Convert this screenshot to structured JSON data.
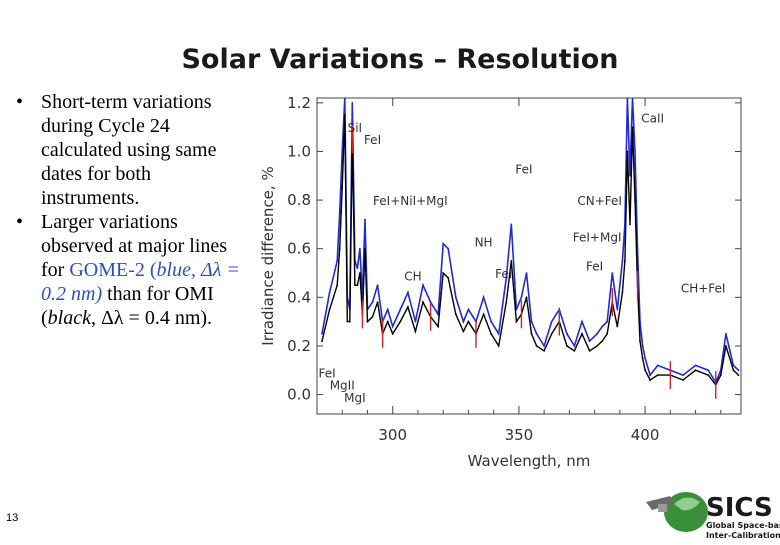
{
  "slide": {
    "title": "Solar Variations – Resolution",
    "page_number": "13",
    "bullet1": "Short-term variations during Cycle 24 calculated using same dates for both instruments.",
    "bullet2": {
      "part1": "Larger variations observed at major lines for ",
      "part2": "GOME-2",
      "part3": " (",
      "part4": "blue, Δλ = 0.2 nm)",
      "part5": " than for OMI (",
      "part6": "black",
      "part7": ", Δλ = 0.4 nm)."
    }
  },
  "logo": {
    "big_text": "SICS",
    "line1": "Global Space-based",
    "line2": "Inter-Calibration System",
    "colors": {
      "green": "#2e8b2e",
      "dark": "#1a1a1a"
    }
  },
  "colors": {
    "gome2_series": "#1f2bd8",
    "omi_series": "#000000",
    "error_bars": "#d42020",
    "axis": "#444444"
  },
  "chart_data": {
    "type": "line",
    "xlabel": "Wavelength, nm",
    "ylabel": "Irradiance difference, %",
    "xlim": [
      270,
      438
    ],
    "ylim": [
      -0.08,
      1.22
    ],
    "x_ticks": [
      300,
      350,
      400
    ],
    "y_ticks": [
      0.0,
      0.2,
      0.4,
      0.6,
      0.8,
      1.0,
      1.2
    ],
    "x_tick_labels": [
      "300",
      "350",
      "400"
    ],
    "y_tick_labels": [
      "0.0",
      "0.2",
      "0.4",
      "0.6",
      "0.8",
      "1.0",
      "1.2"
    ],
    "series": [
      {
        "name": "GOME-2",
        "color": "#1f2bd8",
        "x": [
          272,
          275,
          278,
          279,
          280,
          281,
          282,
          283,
          284,
          285,
          286,
          287,
          288,
          289,
          290,
          292,
          294,
          296,
          298,
          300,
          303,
          306,
          309,
          312,
          315,
          318,
          320,
          322,
          325,
          328,
          330,
          333,
          336,
          339,
          342,
          345,
          347,
          349,
          351,
          353,
          355,
          357,
          360,
          363,
          366,
          369,
          372,
          375,
          378,
          381,
          383,
          385,
          387,
          389,
          391,
          392,
          393,
          394,
          395,
          396,
          397,
          398,
          399,
          400,
          402,
          405,
          410,
          415,
          420,
          425,
          428,
          430,
          432,
          435,
          437
        ],
        "y": [
          0.25,
          0.42,
          0.55,
          0.75,
          1.0,
          1.22,
          0.4,
          0.35,
          1.2,
          0.55,
          0.52,
          0.6,
          0.4,
          0.72,
          0.35,
          0.38,
          0.45,
          0.3,
          0.35,
          0.28,
          0.35,
          0.42,
          0.3,
          0.45,
          0.38,
          0.33,
          0.62,
          0.6,
          0.4,
          0.3,
          0.35,
          0.3,
          0.4,
          0.3,
          0.25,
          0.48,
          0.7,
          0.35,
          0.4,
          0.5,
          0.3,
          0.25,
          0.2,
          0.3,
          0.35,
          0.25,
          0.2,
          0.3,
          0.22,
          0.25,
          0.28,
          0.3,
          0.5,
          0.35,
          0.55,
          0.7,
          1.22,
          0.9,
          1.22,
          1.0,
          0.6,
          0.3,
          0.2,
          0.15,
          0.08,
          0.12,
          0.1,
          0.08,
          0.12,
          0.1,
          0.05,
          0.1,
          0.25,
          0.12,
          0.1
        ]
      },
      {
        "name": "OMI",
        "color": "#000000",
        "x": [
          272,
          275,
          278,
          279,
          280,
          281,
          282,
          283,
          284,
          285,
          286,
          287,
          288,
          289,
          290,
          292,
          294,
          296,
          298,
          300,
          303,
          306,
          309,
          312,
          315,
          318,
          320,
          322,
          325,
          328,
          330,
          333,
          336,
          339,
          342,
          345,
          347,
          349,
          351,
          353,
          355,
          357,
          360,
          363,
          366,
          369,
          372,
          375,
          378,
          381,
          383,
          385,
          387,
          389,
          391,
          392,
          393,
          394,
          395,
          396,
          397,
          398,
          399,
          400,
          402,
          405,
          410,
          415,
          420,
          425,
          428,
          430,
          432,
          435,
          437
        ],
        "y": [
          0.22,
          0.35,
          0.45,
          0.6,
          0.85,
          1.15,
          0.3,
          0.3,
          1.05,
          0.45,
          0.45,
          0.5,
          0.33,
          0.6,
          0.3,
          0.32,
          0.38,
          0.25,
          0.3,
          0.25,
          0.3,
          0.36,
          0.26,
          0.38,
          0.32,
          0.28,
          0.5,
          0.48,
          0.33,
          0.26,
          0.3,
          0.25,
          0.33,
          0.25,
          0.2,
          0.38,
          0.55,
          0.3,
          0.33,
          0.4,
          0.25,
          0.2,
          0.18,
          0.25,
          0.3,
          0.2,
          0.18,
          0.25,
          0.18,
          0.2,
          0.22,
          0.25,
          0.38,
          0.28,
          0.42,
          0.55,
          1.0,
          0.7,
          1.1,
          0.8,
          0.45,
          0.22,
          0.15,
          0.1,
          0.06,
          0.08,
          0.08,
          0.06,
          0.1,
          0.08,
          0.04,
          0.08,
          0.2,
          0.1,
          0.08
        ]
      }
    ],
    "annotations": [
      {
        "text": "SiI",
        "x": 285,
        "y": 1.08
      },
      {
        "text": "FeI",
        "x": 292,
        "y": 1.03
      },
      {
        "text": "FeI+NiI+MgI",
        "x": 307,
        "y": 0.78
      },
      {
        "text": "NH",
        "x": 336,
        "y": 0.61
      },
      {
        "text": "FeI",
        "x": 352,
        "y": 0.91
      },
      {
        "text": "FeI",
        "x": 344,
        "y": 0.48
      },
      {
        "text": "CH",
        "x": 308,
        "y": 0.47
      },
      {
        "text": "CN+FeI",
        "x": 382,
        "y": 0.78
      },
      {
        "text": "FeI+MgI",
        "x": 381,
        "y": 0.63
      },
      {
        "text": "FeI",
        "x": 380,
        "y": 0.51
      },
      {
        "text": "CaII",
        "x": 403,
        "y": 1.12
      },
      {
        "text": "CH+FeI",
        "x": 423,
        "y": 0.42
      },
      {
        "text": "FeI",
        "x": 274,
        "y": 0.07
      },
      {
        "text": "MgII",
        "x": 280,
        "y": 0.02
      },
      {
        "text": "MgI",
        "x": 285,
        "y": -0.03
      }
    ]
  }
}
